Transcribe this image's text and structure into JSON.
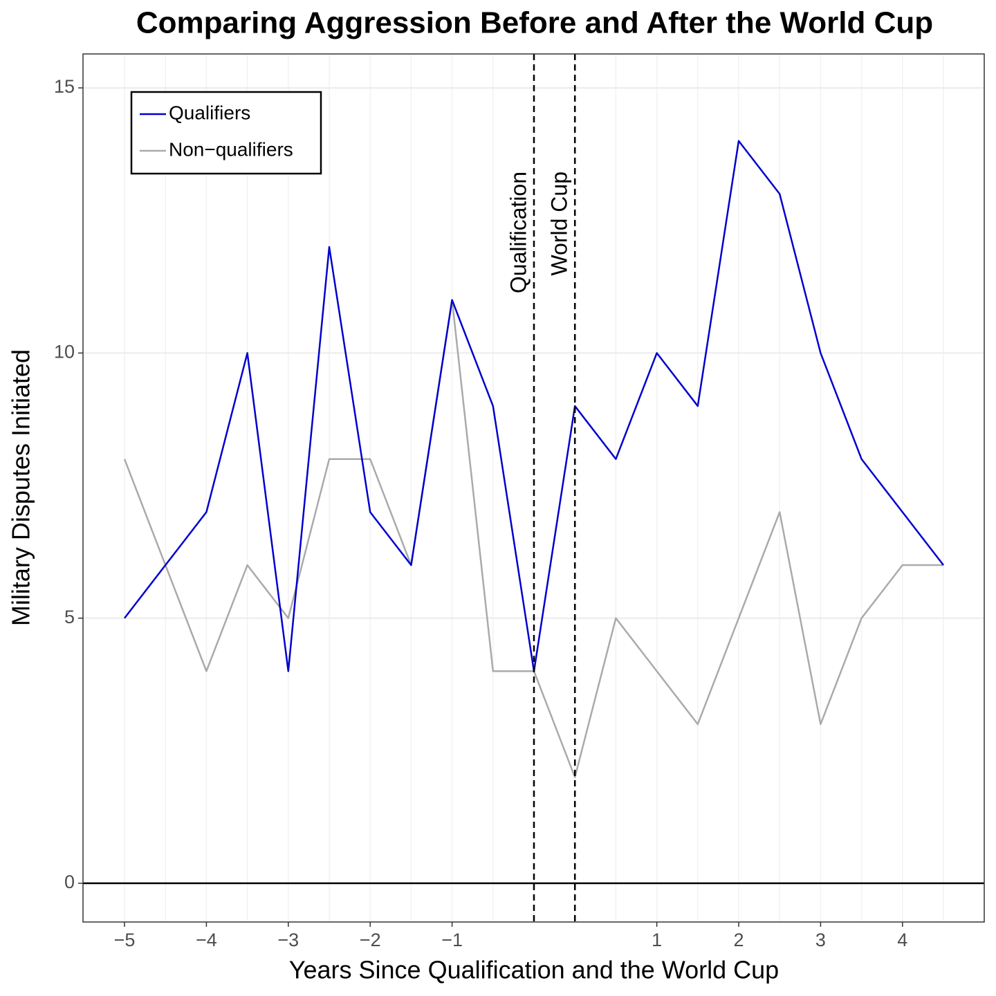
{
  "chart_data": {
    "type": "line",
    "title": "Comparing Aggression Before and After the World Cup",
    "x_label": "Years Since Qualification and the World Cup",
    "y_label": "Military Disputes Initiated",
    "categories": [
      "−5",
      null,
      "−4",
      null,
      "−3",
      null,
      "−2",
      null,
      "−1",
      null,
      null,
      null,
      null,
      "1",
      null,
      "2",
      null,
      "3",
      null,
      "4",
      null
    ],
    "series": [
      {
        "name": "Qualifiers",
        "color": "#0000cd",
        "values": [
          5,
          6,
          7,
          10,
          4,
          12,
          7,
          6,
          11,
          9,
          4,
          9,
          8,
          10,
          9,
          14,
          13,
          10,
          8,
          7,
          6
        ]
      },
      {
        "name": "Non−qualifiers",
        "color": "#aaaaaa",
        "values": [
          8,
          6,
          4,
          6,
          5,
          8,
          8,
          6,
          11,
          4,
          4,
          2,
          5,
          4,
          3,
          5,
          7,
          3,
          5,
          6,
          6
        ]
      }
    ],
    "annotations": [
      "Qualification",
      "World Cup"
    ],
    "ylim": [
      -0.73,
      15.64
    ],
    "yticks": [
      0,
      5,
      10,
      15
    ],
    "grid": true,
    "legend": "top-left"
  }
}
